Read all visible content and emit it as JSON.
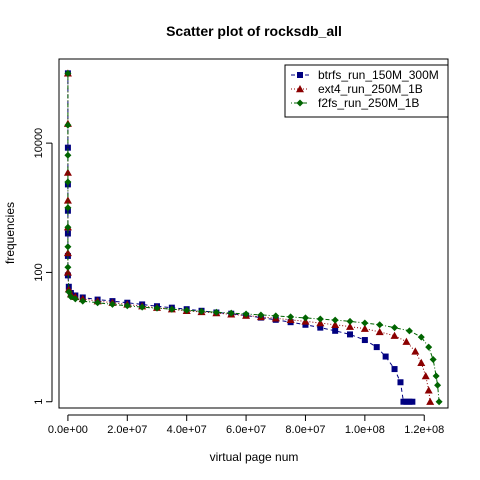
{
  "chart_data": {
    "type": "scatter",
    "title": "Scatter plot of rocksdb_all",
    "xlabel": "virtual page num",
    "ylabel": "frequencies",
    "y_scale": "log",
    "xlim": [
      -3000000,
      128000000
    ],
    "ylim": [
      0.8,
      200000
    ],
    "legend_position": "top-right",
    "x_ticks": [
      {
        "value": 0,
        "label": "0.0e+00"
      },
      {
        "value": 20000000,
        "label": "2.0e+07"
      },
      {
        "value": 40000000,
        "label": "4.0e+07"
      },
      {
        "value": 60000000,
        "label": "6.0e+07"
      },
      {
        "value": 80000000,
        "label": "8.0e+07"
      },
      {
        "value": 100000000,
        "label": "1.0e+08"
      },
      {
        "value": 120000000,
        "label": "1.2e+08"
      }
    ],
    "y_ticks": [
      {
        "value": 1,
        "label": "1"
      },
      {
        "value": 100,
        "label": "100"
      },
      {
        "value": 10000,
        "label": "10000"
      }
    ],
    "series": [
      {
        "name": "btrfs_run_150M_300M",
        "color": "#000080",
        "marker": "square",
        "line": "dashed",
        "points": [
          [
            0,
            120000
          ],
          [
            0,
            8500
          ],
          [
            0,
            2300
          ],
          [
            0,
            900
          ],
          [
            0,
            400
          ],
          [
            0,
            180
          ],
          [
            0,
            90
          ],
          [
            300000,
            60
          ],
          [
            1000000,
            48
          ],
          [
            2500000,
            44
          ],
          [
            5000000,
            41
          ],
          [
            10000000,
            38
          ],
          [
            15000000,
            36
          ],
          [
            20000000,
            34
          ],
          [
            25000000,
            32
          ],
          [
            30000000,
            30
          ],
          [
            35000000,
            28.5
          ],
          [
            40000000,
            27
          ],
          [
            45000000,
            25.5
          ],
          [
            50000000,
            24
          ],
          [
            55000000,
            23
          ],
          [
            60000000,
            21.5
          ],
          [
            65000000,
            20
          ],
          [
            70000000,
            18.5
          ],
          [
            75000000,
            17
          ],
          [
            80000000,
            15.5
          ],
          [
            85000000,
            14
          ],
          [
            90000000,
            12.5
          ],
          [
            95000000,
            11
          ],
          [
            100000000,
            9
          ],
          [
            104000000,
            7
          ],
          [
            107000000,
            5
          ],
          [
            110000000,
            3.2
          ],
          [
            112000000,
            2
          ],
          [
            113000000,
            1
          ],
          [
            114000000,
            1
          ],
          [
            115000000,
            1
          ],
          [
            116000000,
            1
          ]
        ]
      },
      {
        "name": "ext4_run_250M_1B",
        "color": "#8B0000",
        "marker": "triangle",
        "line": "dotted",
        "points": [
          [
            0,
            120000
          ],
          [
            0,
            20000
          ],
          [
            0,
            3500
          ],
          [
            0,
            1300
          ],
          [
            0,
            500
          ],
          [
            0,
            200
          ],
          [
            0,
            100
          ],
          [
            300000,
            55
          ],
          [
            1000000,
            46
          ],
          [
            2500000,
            42
          ],
          [
            5000000,
            39
          ],
          [
            10000000,
            36
          ],
          [
            15000000,
            34
          ],
          [
            20000000,
            32
          ],
          [
            25000000,
            30
          ],
          [
            30000000,
            28.5
          ],
          [
            35000000,
            27
          ],
          [
            40000000,
            25.5
          ],
          [
            45000000,
            24.5
          ],
          [
            50000000,
            23.5
          ],
          [
            55000000,
            22.5
          ],
          [
            60000000,
            21.5
          ],
          [
            65000000,
            20.5
          ],
          [
            70000000,
            19.5
          ],
          [
            75000000,
            18.5
          ],
          [
            80000000,
            17.5
          ],
          [
            85000000,
            16.5
          ],
          [
            90000000,
            15.5
          ],
          [
            95000000,
            14.5
          ],
          [
            100000000,
            13.5
          ],
          [
            105000000,
            12
          ],
          [
            110000000,
            10.5
          ],
          [
            114000000,
            8.5
          ],
          [
            117000000,
            6
          ],
          [
            119000000,
            4
          ],
          [
            120500000,
            2.5
          ],
          [
            121500000,
            1.5
          ],
          [
            122000000,
            1
          ]
        ]
      },
      {
        "name": "f2fs_run_250M_1B",
        "color": "#006400",
        "marker": "diamond",
        "line": "dotdash",
        "points": [
          [
            0,
            120000
          ],
          [
            0,
            19000
          ],
          [
            0,
            6500
          ],
          [
            0,
            2500
          ],
          [
            0,
            1000
          ],
          [
            0,
            500
          ],
          [
            0,
            250
          ],
          [
            0,
            120
          ],
          [
            300000,
            50
          ],
          [
            1000000,
            42
          ],
          [
            2500000,
            39
          ],
          [
            5000000,
            36
          ],
          [
            10000000,
            34
          ],
          [
            15000000,
            32
          ],
          [
            20000000,
            30.5
          ],
          [
            25000000,
            29
          ],
          [
            30000000,
            28
          ],
          [
            35000000,
            27
          ],
          [
            40000000,
            26
          ],
          [
            45000000,
            25
          ],
          [
            50000000,
            24.2
          ],
          [
            55000000,
            23.5
          ],
          [
            60000000,
            22.8
          ],
          [
            65000000,
            22
          ],
          [
            70000000,
            21.3
          ],
          [
            75000000,
            20.5
          ],
          [
            80000000,
            19.8
          ],
          [
            85000000,
            19
          ],
          [
            90000000,
            18.3
          ],
          [
            95000000,
            17.5
          ],
          [
            100000000,
            16.5
          ],
          [
            105000000,
            15.5
          ],
          [
            110000000,
            14
          ],
          [
            115000000,
            12.5
          ],
          [
            119000000,
            10
          ],
          [
            121500000,
            7
          ],
          [
            123000000,
            4.5
          ],
          [
            124000000,
            2.5
          ],
          [
            124500000,
            1.8
          ],
          [
            125000000,
            1
          ]
        ]
      }
    ]
  }
}
